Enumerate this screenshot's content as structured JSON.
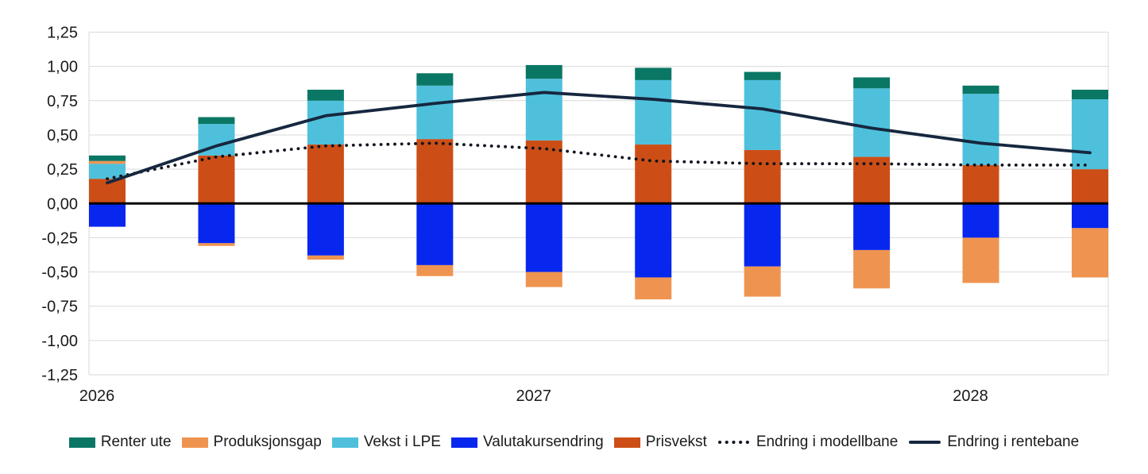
{
  "chart_data": {
    "type": "bar",
    "title": "",
    "xlabel": "",
    "ylabel": "",
    "n_bars": 10,
    "ylim": [
      -1.25,
      1.25
    ],
    "grid": true,
    "grid_color": "#D9D9D9",
    "zero_line_color": "#000000",
    "axis_text_color": "#1a1a1a",
    "legend_position": "bottom",
    "y_ticks": [
      {
        "label": "1,25",
        "value": 1.25
      },
      {
        "label": "1,00",
        "value": 1.0
      },
      {
        "label": "0,75",
        "value": 0.75
      },
      {
        "label": "0,50",
        "value": 0.5
      },
      {
        "label": "0,25",
        "value": 0.25
      },
      {
        "label": "0,00",
        "value": 0.0
      },
      {
        "label": "-0,25",
        "value": -0.25
      },
      {
        "label": "-0,50",
        "value": -0.5
      },
      {
        "label": "-0,75",
        "value": -0.75
      },
      {
        "label": "-1,00",
        "value": -1.0
      },
      {
        "label": "-1,25",
        "value": -1.25
      }
    ],
    "x_labels": [
      {
        "index": 0,
        "label": "2026"
      },
      {
        "index": 4,
        "label": "2027"
      },
      {
        "index": 8,
        "label": "2028"
      }
    ],
    "stack_order": [
      "Prisvekst",
      "Vekst i LPE",
      "Valutakursendring",
      "Produksjonsgap",
      "Renter ute"
    ],
    "series": [
      {
        "name": "Renter ute",
        "color": "#0A7765",
        "values": [
          0.04,
          0.05,
          0.08,
          0.09,
          0.1,
          0.09,
          0.06,
          0.08,
          0.06,
          0.07
        ]
      },
      {
        "name": "Produksjonsgap",
        "color": "#EF9450",
        "values": [
          0.02,
          -0.02,
          -0.03,
          -0.08,
          -0.11,
          -0.16,
          -0.22,
          -0.28,
          -0.33,
          -0.36
        ]
      },
      {
        "name": "Vekst i LPE",
        "color": "#4EC0DC",
        "values": [
          0.11,
          0.23,
          0.32,
          0.39,
          0.45,
          0.47,
          0.51,
          0.5,
          0.52,
          0.51
        ]
      },
      {
        "name": "Valutakursendring",
        "color": "#0827EE",
        "values": [
          -0.17,
          -0.29,
          -0.38,
          -0.45,
          -0.5,
          -0.54,
          -0.46,
          -0.34,
          -0.25,
          -0.18
        ]
      },
      {
        "name": "Prisvekst",
        "color": "#CC4E16",
        "values": [
          0.18,
          0.35,
          0.43,
          0.47,
          0.46,
          0.43,
          0.39,
          0.34,
          0.28,
          0.25
        ]
      }
    ],
    "line_series": [
      {
        "name": "Endring i modellbane",
        "style": "dotted",
        "color": "#10151E",
        "values": [
          0.18,
          0.34,
          0.42,
          0.44,
          0.4,
          0.31,
          0.29,
          0.29,
          0.28,
          0.28
        ]
      },
      {
        "name": "Endring i rentebane",
        "style": "solid",
        "color": "#16273F",
        "values": [
          0.15,
          0.42,
          0.64,
          0.73,
          0.81,
          0.76,
          0.69,
          0.55,
          0.44,
          0.37
        ]
      }
    ],
    "legend": [
      {
        "label": "Renter ute",
        "type": "box",
        "color": "#0A7765"
      },
      {
        "label": "Produksjonsgap",
        "type": "box",
        "color": "#EF9450"
      },
      {
        "label": "Vekst i LPE",
        "type": "box",
        "color": "#4EC0DC"
      },
      {
        "label": "Valutakursendring",
        "type": "box",
        "color": "#0827EE"
      },
      {
        "label": "Prisvekst",
        "type": "box",
        "color": "#CC4E16"
      },
      {
        "label": "Endring i modellbane",
        "type": "dotted-line",
        "color": "#10151E"
      },
      {
        "label": "Endring i rentebane",
        "type": "solid-line",
        "color": "#16273F"
      }
    ]
  }
}
